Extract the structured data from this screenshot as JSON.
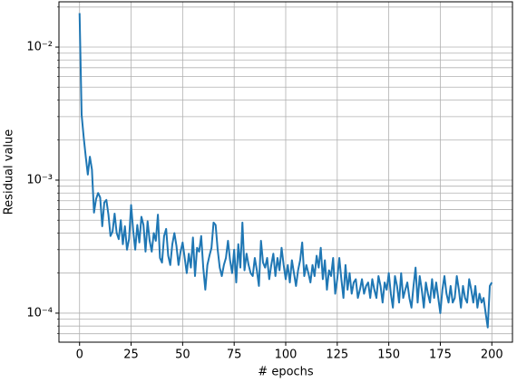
{
  "chart_data": {
    "type": "line",
    "xlabel": "# epochs",
    "ylabel": "Residual value",
    "color": "#1f77b4",
    "yscale": "log",
    "grid": true,
    "xlim": [
      -10,
      210
    ],
    "xticks": [
      0,
      25,
      50,
      75,
      100,
      125,
      150,
      175,
      200
    ],
    "ylim": [
      6.05e-05,
      0.0219
    ],
    "yticks": [
      {
        "value": 0.0001,
        "label": "10⁻⁴"
      },
      {
        "value": 0.001,
        "label": "10⁻³"
      },
      {
        "value": 0.01,
        "label": "10⁻²"
      }
    ],
    "yminorticks": [
      7e-05,
      8e-05,
      9e-05,
      0.0002,
      0.0003,
      0.0004,
      0.0005,
      0.0006,
      0.0007,
      0.0008,
      0.0009,
      0.002,
      0.003,
      0.004,
      0.005,
      0.006,
      0.007,
      0.008,
      0.009,
      0.02
    ],
    "x": [
      0,
      1,
      2,
      3,
      4,
      5,
      6,
      7,
      8,
      9,
      10,
      11,
      12,
      13,
      14,
      15,
      16,
      17,
      18,
      19,
      20,
      21,
      22,
      23,
      24,
      25,
      26,
      27,
      28,
      29,
      30,
      31,
      32,
      33,
      34,
      35,
      36,
      37,
      38,
      39,
      40,
      41,
      42,
      43,
      44,
      45,
      46,
      47,
      48,
      49,
      50,
      51,
      52,
      53,
      54,
      55,
      56,
      57,
      58,
      59,
      60,
      61,
      62,
      63,
      64,
      65,
      66,
      67,
      68,
      69,
      70,
      71,
      72,
      73,
      74,
      75,
      76,
      77,
      78,
      79,
      80,
      81,
      82,
      83,
      84,
      85,
      86,
      87,
      88,
      89,
      90,
      91,
      92,
      93,
      94,
      95,
      96,
      97,
      98,
      99,
      100,
      101,
      102,
      103,
      104,
      105,
      106,
      107,
      108,
      109,
      110,
      111,
      112,
      113,
      114,
      115,
      116,
      117,
      118,
      119,
      120,
      121,
      122,
      123,
      124,
      125,
      126,
      127,
      128,
      129,
      130,
      131,
      132,
      133,
      134,
      135,
      136,
      137,
      138,
      139,
      140,
      141,
      142,
      143,
      144,
      145,
      146,
      147,
      148,
      149,
      150,
      151,
      152,
      153,
      154,
      155,
      156,
      157,
      158,
      159,
      160,
      161,
      162,
      163,
      164,
      165,
      166,
      167,
      168,
      169,
      170,
      171,
      172,
      173,
      174,
      175,
      176,
      177,
      178,
      179,
      180,
      181,
      182,
      183,
      184,
      185,
      186,
      187,
      188,
      189,
      190,
      191,
      192,
      193,
      194,
      195,
      196,
      197,
      198,
      199,
      200
    ],
    "values": [
      0.018,
      0.0031,
      0.0021,
      0.0015,
      0.0011,
      0.0015,
      0.0012,
      0.00057,
      0.00072,
      0.0008,
      0.00074,
      0.00045,
      0.00068,
      0.00071,
      0.00055,
      0.00038,
      0.00041,
      0.00056,
      0.0004,
      0.00036,
      0.0005,
      0.00033,
      0.00045,
      0.0003,
      0.00036,
      0.00065,
      0.00042,
      0.0003,
      0.00046,
      0.00034,
      0.00053,
      0.00046,
      0.00029,
      0.00049,
      0.00035,
      0.00029,
      0.0004,
      0.00035,
      0.00055,
      0.00026,
      0.00024,
      0.00038,
      0.00043,
      0.00027,
      0.00023,
      0.00033,
      0.0004,
      0.00032,
      0.00023,
      0.00029,
      0.00034,
      0.00026,
      0.0002,
      0.00028,
      0.00022,
      0.00037,
      0.00019,
      0.00031,
      0.00029,
      0.00038,
      0.00022,
      0.00015,
      0.00023,
      0.00027,
      0.00031,
      0.00048,
      0.00046,
      0.0003,
      0.00022,
      0.00019,
      0.00023,
      0.00026,
      0.00035,
      0.00025,
      0.0002,
      0.0003,
      0.00017,
      0.00033,
      0.00022,
      0.00048,
      0.00021,
      0.00028,
      0.00023,
      0.0002,
      0.00019,
      0.00026,
      0.00021,
      0.00016,
      0.00035,
      0.00024,
      0.00022,
      0.00026,
      0.00018,
      0.00023,
      0.00028,
      0.00019,
      0.00026,
      0.00021,
      0.00031,
      0.00023,
      0.00018,
      0.00023,
      0.00017,
      0.00025,
      0.0002,
      0.00016,
      0.00021,
      0.00025,
      0.00034,
      0.00019,
      0.00023,
      0.0002,
      0.00017,
      0.00023,
      0.00019,
      0.00027,
      0.00022,
      0.00031,
      0.00018,
      0.00025,
      0.00015,
      0.00021,
      0.00019,
      0.00026,
      0.00014,
      0.00018,
      0.00026,
      0.00018,
      0.00013,
      0.00023,
      0.00015,
      0.0002,
      0.00014,
      0.00017,
      0.00018,
      0.00013,
      0.00015,
      0.00018,
      0.00014,
      0.00016,
      0.00017,
      0.00013,
      0.00018,
      0.00015,
      0.00013,
      0.00019,
      0.00016,
      0.00012,
      0.00017,
      0.00015,
      0.0002,
      0.00014,
      0.00011,
      0.00019,
      0.00016,
      0.00012,
      0.0002,
      0.00013,
      0.00015,
      0.00017,
      0.00013,
      0.00011,
      0.00016,
      0.00022,
      0.00012,
      0.00019,
      0.00015,
      0.00011,
      0.00017,
      0.00014,
      0.00012,
      0.00018,
      0.00013,
      0.00017,
      0.00013,
      0.0001,
      0.00015,
      0.00019,
      0.00014,
      0.00012,
      0.00016,
      0.00012,
      0.00013,
      0.00019,
      0.00015,
      0.00011,
      0.00016,
      0.00013,
      0.00012,
      0.00018,
      0.00015,
      0.00012,
      0.00016,
      0.00011,
      0.00014,
      0.00012,
      0.00013,
      0.0001,
      7.8e-05,
      0.00016,
      0.00017
    ]
  }
}
